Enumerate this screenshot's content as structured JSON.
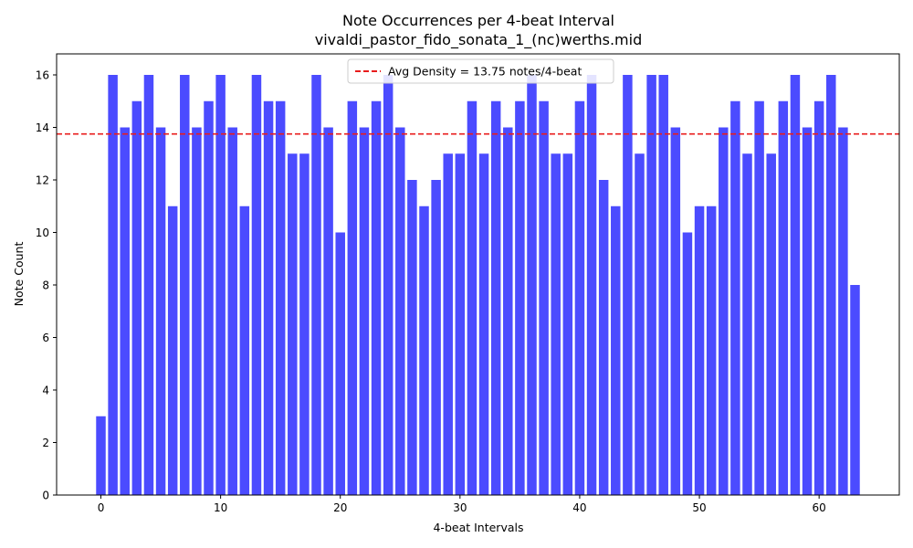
{
  "chart_data": {
    "type": "bar",
    "title": "Note Occurrences per 4-beat Interval",
    "subtitle": "vivaldi_pastor_fido_sonata_1_(nc)werths.mid",
    "xlabel": "4-beat Intervals",
    "ylabel": "Note Count",
    "x": [
      0,
      1,
      2,
      3,
      4,
      5,
      6,
      7,
      8,
      9,
      10,
      11,
      12,
      13,
      14,
      15,
      16,
      17,
      18,
      19,
      20,
      21,
      22,
      23,
      24,
      25,
      26,
      27,
      28,
      29,
      30,
      31,
      32,
      33,
      34,
      35,
      36,
      37,
      38,
      39,
      40,
      41,
      42,
      43,
      44,
      45,
      46,
      47,
      48,
      49,
      50,
      51,
      52,
      53,
      54,
      55,
      56,
      57,
      58,
      59,
      60,
      61,
      62,
      63
    ],
    "values": [
      3,
      16,
      14,
      15,
      16,
      14,
      11,
      16,
      14,
      15,
      16,
      14,
      11,
      16,
      15,
      15,
      13,
      13,
      16,
      14,
      10,
      15,
      14,
      15,
      16,
      14,
      12,
      11,
      12,
      13,
      13,
      15,
      13,
      15,
      14,
      15,
      16,
      15,
      13,
      13,
      15,
      16,
      12,
      11,
      16,
      13,
      16,
      16,
      14,
      10,
      11,
      11,
      14,
      15,
      13,
      15,
      13,
      15,
      16,
      14,
      15,
      16,
      14,
      8
    ],
    "xlim": [
      -3.7,
      66.7
    ],
    "ylim": [
      0,
      16.8
    ],
    "xticks": [
      0,
      10,
      20,
      30,
      40,
      50,
      60
    ],
    "yticks": [
      0,
      2,
      4,
      6,
      8,
      10,
      12,
      14,
      16
    ],
    "bar_color": "#4b4bff",
    "average": {
      "value": 13.75,
      "label": "Avg Density = 13.75 notes/4-beat",
      "color": "#e81c1c",
      "style": "dashed"
    },
    "legend_position": "top-center",
    "grid": false
  }
}
